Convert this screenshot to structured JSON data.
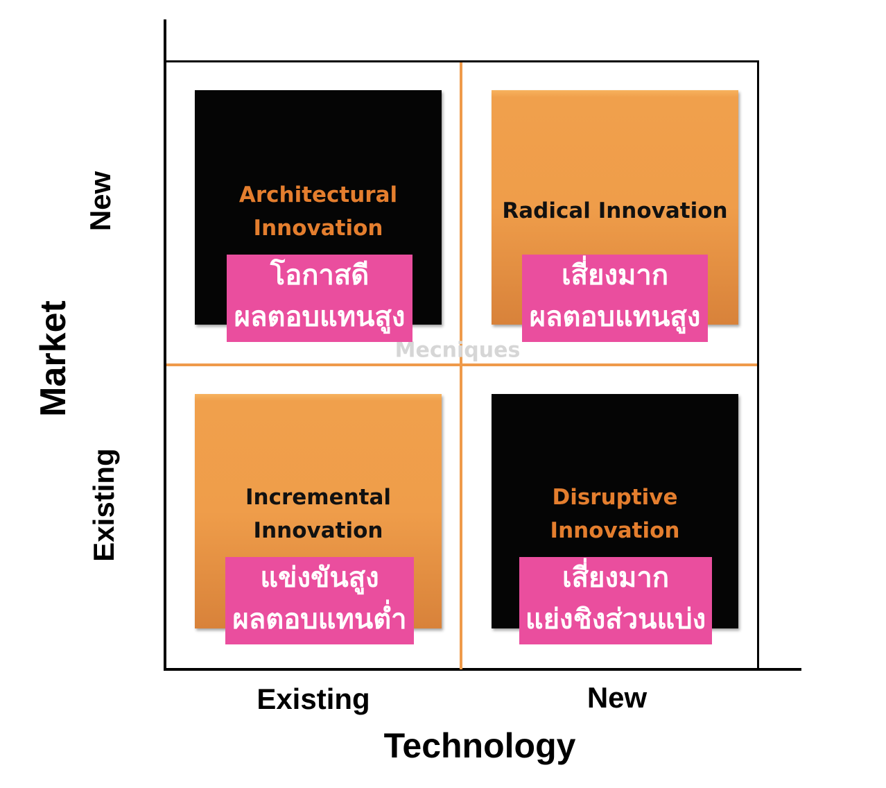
{
  "axes": {
    "y_title": "Market",
    "y_top": "New",
    "y_bottom": "Existing",
    "x_title": "Technology",
    "x_left": "Existing",
    "x_right": "New"
  },
  "quadrants": [
    {
      "title_lines": [
        "Architectural",
        "Innovation"
      ],
      "note_lines": [
        "โอกาสดี",
        "ผลตอบแทนสูง"
      ],
      "fill": "#050505",
      "title_color": "#e47e2e"
    },
    {
      "title_lines": [
        "Radical  Innovation"
      ],
      "note_lines": [
        "เสี่ยงมาก",
        "ผลตอบแทนสูง"
      ],
      "fill": "#ef9d4a",
      "title_color": "#111111"
    },
    {
      "title_lines": [
        "Incremental",
        "Innovation"
      ],
      "note_lines": [
        "แข่งขันสูง",
        "ผลตอบแทนต่ำ"
      ],
      "fill": "#ef9d4a",
      "title_color": "#111111"
    },
    {
      "title_lines": [
        "Disruptive",
        "Innovation"
      ],
      "note_lines": [
        "เสี่ยงมาก",
        "แย่งชิงส่วนแบ่ง"
      ],
      "fill": "#050505",
      "title_color": "#e47e2e"
    }
  ],
  "note_color": "#ea4e9e",
  "divider_color": "#ef9a4a",
  "watermark": "Mecniques"
}
